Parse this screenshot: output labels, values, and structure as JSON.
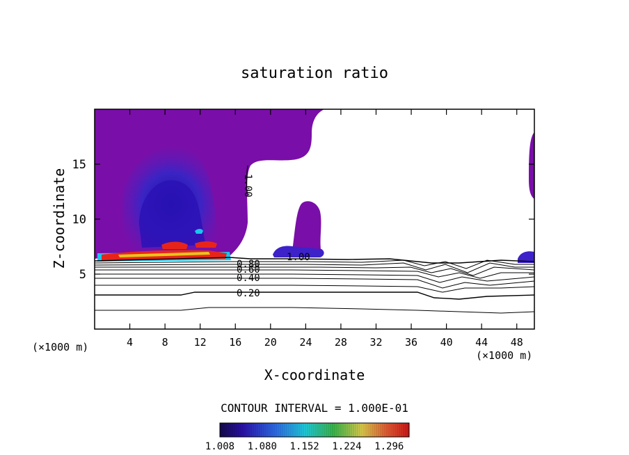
{
  "chart_data": {
    "type": "contour",
    "title": "saturation ratio",
    "xlabel": "X-coordinate",
    "ylabel": "Z-coordinate",
    "x_unit_label": "(×1000 m)",
    "xlim": [
      0,
      50
    ],
    "ylim": [
      0,
      20
    ],
    "x_ticks": [
      "4",
      "8",
      "12",
      "16",
      "20",
      "24",
      "28",
      "32",
      "36",
      "40",
      "44",
      "48"
    ],
    "y_ticks": [
      "5",
      "10",
      "15"
    ],
    "contour_interval_label": "CONTOUR INTERVAL = 1.000E-01",
    "contour_labels": [
      "1.00",
      "1.00",
      "0.80",
      "0.60",
      "0.40",
      "0.20"
    ],
    "colorbar": {
      "min": 1.008,
      "max": 1.33,
      "tick_labels": [
        "1.008",
        "1.080",
        "1.152",
        "1.224",
        "1.296"
      ]
    },
    "colors": {
      "saturated_purple": "#7a0ea8",
      "deep_blue": "#2a0fb0",
      "mid_blue": "#3a2bd0",
      "cyan": "#19c6ec",
      "green": "#2ea84a",
      "yellow": "#e6e21c",
      "red": "#e8241a"
    }
  }
}
